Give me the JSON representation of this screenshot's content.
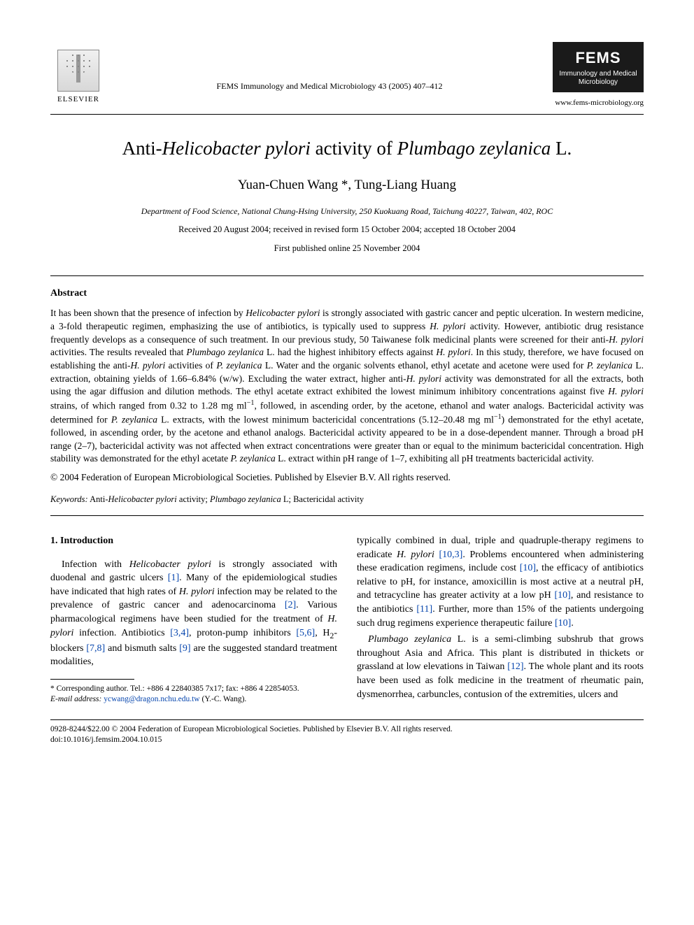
{
  "header": {
    "elsevier_label": "ELSEVIER",
    "journal_ref": "FEMS Immunology and Medical Microbiology 43 (2005) 407–412",
    "fems_big": "FEMS",
    "fems_sub": "Immunology and Medical Microbiology",
    "fems_url": "www.fems-microbiology.org"
  },
  "title": {
    "pre": "Anti-",
    "sp1": "Helicobacter pylori",
    "mid": " activity of ",
    "sp2": "Plumbago zeylanica",
    "post": " L."
  },
  "authors": "Yuan-Chuen Wang *, Tung-Liang Huang",
  "affiliation": "Department of Food Science, National Chung-Hsing University, 250 Kuokuang Road, Taichung 40227, Taiwan, 402, ROC",
  "dates": "Received 20 August 2004; received in revised form 15 October 2004; accepted 18 October 2004",
  "firstpub": "First published online 25 November 2004",
  "abstract": {
    "heading": "Abstract",
    "body_html": "It has been shown that the presence of infection by <em>Helicobacter pylori</em> is strongly associated with gastric cancer and peptic ulceration. In western medicine, a 3-fold therapeutic regimen, emphasizing the use of antibiotics, is typically used to suppress <em>H. pylori</em> activity. However, antibiotic drug resistance frequently develops as a consequence of such treatment. In our previous study, 50 Taiwanese folk medicinal plants were screened for their anti-<em>H. pylori</em> activities. The results revealed that <em>Plumbago zeylanica</em> L. had the highest inhibitory effects against <em>H. pylori</em>. In this study, therefore, we have focused on establishing the anti-<em>H. pylori</em> activities of <em>P. zeylanica</em> L. Water and the organic solvents ethanol, ethyl acetate and acetone were used for <em>P. zeylanica</em> L. extraction, obtaining yields of 1.66–6.84% (w/w). Excluding the water extract, higher anti-<em>H. pylori</em> activity was demonstrated for all the extracts, both using the agar diffusion and dilution methods. The ethyl acetate extract exhibited the lowest minimum inhibitory concentrations against five <em>H. pylori</em> strains, of which ranged from 0.32 to 1.28 mg ml<sup>−1</sup>, followed, in ascending order, by the acetone, ethanol and water analogs. Bactericidal activity was determined for <em>P. zeylanica</em> L. extracts, with the lowest minimum bactericidal concentrations (5.12–20.48 mg ml<sup>−1</sup>) demonstrated for the ethyl acetate, followed, in ascending order, by the acetone and ethanol analogs. Bactericidal activity appeared to be in a dose-dependent manner. Through a broad pH range (2–7), bactericidal activity was not affected when extract concentrations were greater than or equal to the minimum bactericidal concentration. High stability was demonstrated for the ethyl acetate <em>P. zeylanica</em> L. extract within pH range of 1–7, exhibiting all pH treatments bactericidal activity.",
    "copyright": "© 2004 Federation of European Microbiological Societies. Published by Elsevier B.V. All rights reserved."
  },
  "keywords": {
    "label": "Keywords:",
    "text_html": " Anti-<em>Helicobacter pylori</em> activity; <em>Plumbago zeylanica</em> L; Bactericidal activity"
  },
  "body": {
    "section_head": "1. Introduction",
    "col1_html": "Infection with <em>Helicobacter pylori</em> is strongly associated with duodenal and gastric ulcers <a class='link' href='#'>[1]</a>. Many of the epidemiological studies have indicated that high rates of <em>H. pylori</em> infection may be related to the prevalence of gastric cancer and adenocarcinoma <a class='link' href='#'>[2]</a>. Various pharmacological regimens have been studied for the treatment of <em>H. pylori</em> infection. Antibiotics <a class='link' href='#'>[3,4]</a>, proton-pump inhibitors <a class='link' href='#'>[5,6]</a>, H<sub>2</sub>-blockers <a class='link' href='#'>[7,8]</a> and bismuth salts <a class='link' href='#'>[9]</a> are the suggested standard treatment modalities,",
    "col2_p1_html": "typically combined in dual, triple and quadruple-therapy regimens to eradicate <em>H. pylori</em> <a class='link' href='#'>[10,3]</a>. Problems encountered when administering these eradication regimens, include cost <a class='link' href='#'>[10]</a>, the efficacy of antibiotics relative to pH, for instance, amoxicillin is most active at a neutral pH, and tetracycline has greater activity at a low pH <a class='link' href='#'>[10]</a>, and resistance to the antibiotics <a class='link' href='#'>[11]</a>. Further, more than 15% of the patients undergoing such drug regimens experience therapeutic failure <a class='link' href='#'>[10]</a>.",
    "col2_p2_html": "<em>Plumbago zeylanica</em> L. is a semi-climbing subshrub that grows throughout Asia and Africa. This plant is distributed in thickets or grassland at low elevations in Taiwan <a class='link' href='#'>[12]</a>. The whole plant and its roots have been used as folk medicine in the treatment of rheumatic pain, dysmenorrhea, carbuncles, contusion of the extremities, ulcers and"
  },
  "footnote": {
    "corr": "* Corresponding author. Tel.: +886 4 22840385 7x17; fax: +886 4 22854053.",
    "email_label": "E-mail address:",
    "email": "ycwang@dragon.nchu.edu.tw",
    "email_suffix": "(Y.-C. Wang)."
  },
  "bottom": {
    "line1": "0928-8244/$22.00 © 2004 Federation of European Microbiological Societies. Published by Elsevier B.V. All rights reserved.",
    "line2": "doi:10.1016/j.femsim.2004.10.015"
  },
  "colors": {
    "text": "#000000",
    "link": "#0645ad",
    "background": "#ffffff"
  }
}
